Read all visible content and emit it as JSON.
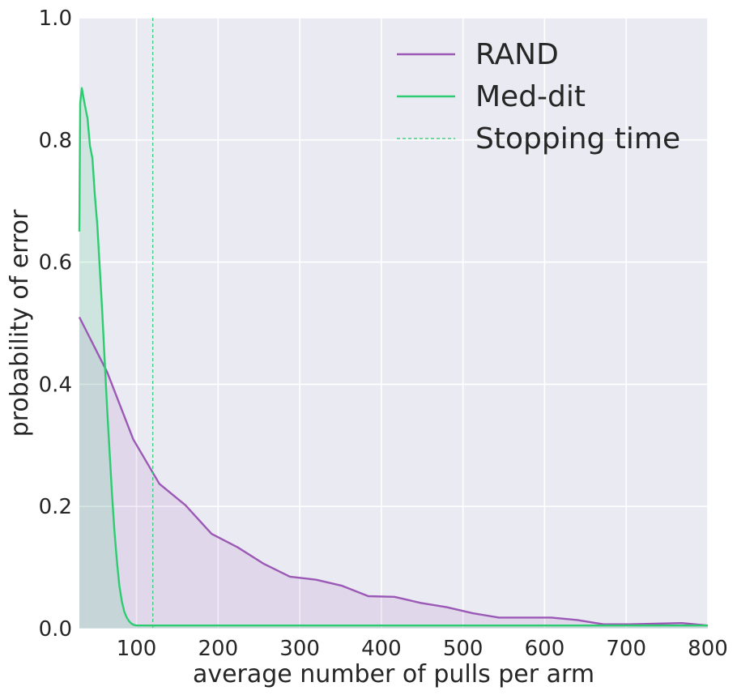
{
  "chart_data": {
    "type": "line",
    "title": "",
    "xlabel": "average number of pulls per arm",
    "ylabel": "probability of error",
    "xlim": [
      30,
      800
    ],
    "ylim": [
      0.0,
      1.0
    ],
    "xticks": [
      100,
      200,
      300,
      400,
      500,
      600,
      700,
      800
    ],
    "yticks": [
      0.0,
      0.2,
      0.4,
      0.6,
      0.8,
      1.0
    ],
    "xtick_labels": [
      "100",
      "200",
      "300",
      "400",
      "500",
      "600",
      "700",
      "800"
    ],
    "ytick_labels": [
      "0.0",
      "0.2",
      "0.4",
      "0.6",
      "0.8",
      "1.0"
    ],
    "grid": true,
    "legend_position": "top-right",
    "series": [
      {
        "name": "RAND",
        "color": "#9b59b6",
        "fill": true,
        "x": [
          30,
          64,
          96,
          128,
          160,
          192,
          224,
          256,
          288,
          320,
          352,
          384,
          416,
          448,
          480,
          512,
          544,
          576,
          608,
          640,
          672,
          704,
          736,
          768,
          800
        ],
        "y": [
          0.51,
          0.42,
          0.31,
          0.237,
          0.202,
          0.155,
          0.133,
          0.106,
          0.085,
          0.08,
          0.07,
          0.053,
          0.052,
          0.042,
          0.035,
          0.025,
          0.018,
          0.018,
          0.018,
          0.014,
          0.007,
          0.007,
          0.008,
          0.009,
          0.005
        ]
      },
      {
        "name": "Med-dit",
        "color": "#2ecc71",
        "fill": true,
        "x": [
          30,
          31,
          33,
          35,
          37,
          40,
          43,
          46,
          49,
          52,
          55,
          58,
          61,
          64,
          67,
          70,
          73,
          76,
          79,
          82,
          85,
          88,
          91,
          94,
          97,
          100,
          103,
          106,
          110,
          120,
          160,
          300,
          500,
          700,
          800
        ],
        "y": [
          0.65,
          0.86,
          0.885,
          0.87,
          0.855,
          0.835,
          0.79,
          0.77,
          0.71,
          0.66,
          0.59,
          0.52,
          0.44,
          0.36,
          0.29,
          0.22,
          0.16,
          0.11,
          0.07,
          0.045,
          0.028,
          0.018,
          0.012,
          0.008,
          0.006,
          0.005,
          0.005,
          0.005,
          0.005,
          0.005,
          0.005,
          0.005,
          0.005,
          0.005,
          0.005
        ]
      }
    ],
    "vlines": [
      {
        "name": "Stopping time",
        "x": 120,
        "color": "#2ecc71",
        "style": "dashed"
      }
    ]
  }
}
